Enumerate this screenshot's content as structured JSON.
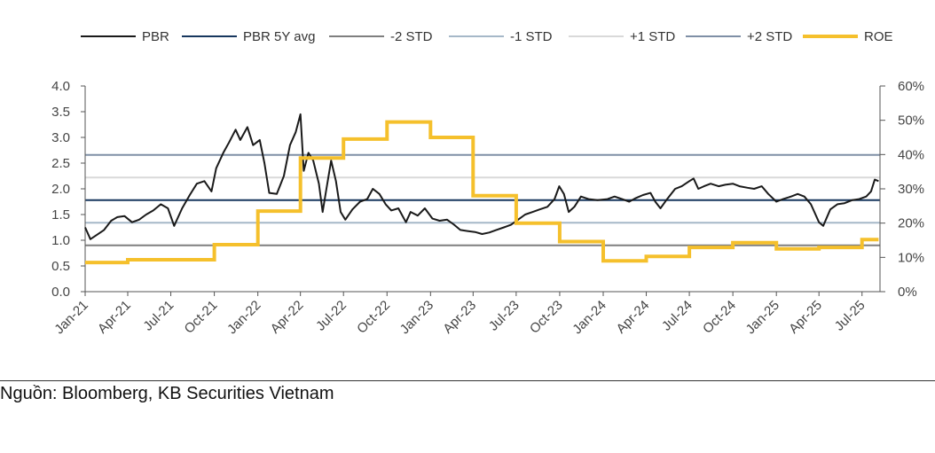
{
  "source": "Nguồn: Bloomberg, KB Securities Vietnam",
  "chart_data": {
    "type": "line",
    "title": "",
    "xlabel": "",
    "ylabel": "",
    "y_left_range": [
      0,
      4.0
    ],
    "y_left_ticks": [
      "0.0",
      "0.5",
      "1.0",
      "1.5",
      "2.0",
      "2.5",
      "3.0",
      "3.5",
      "4.0"
    ],
    "y_right_range": [
      0,
      60
    ],
    "y_right_ticks": [
      "0%",
      "10%",
      "20%",
      "30%",
      "40%",
      "50%",
      "60%"
    ],
    "x_ticks": [
      "Jan-21",
      "Apr-21",
      "Jul-21",
      "Oct-21",
      "Jan-22",
      "Apr-22",
      "Jul-22",
      "Oct-22",
      "Jan-23",
      "Apr-23",
      "Jul-23",
      "Oct-23",
      "Jan-24",
      "Apr-24",
      "Jul-24",
      "Oct-24",
      "Jan-25",
      "Apr-25",
      "Jul-25"
    ],
    "grid": false,
    "legend_position": "top",
    "series": [
      {
        "name": "PBR",
        "axis": "left",
        "color": "#1a1a1a",
        "style": "line",
        "points": [
          [
            "2021-01-01",
            1.25
          ],
          [
            "2021-01-12",
            1.02
          ],
          [
            "2021-01-25",
            1.1
          ],
          [
            "2021-02-10",
            1.2
          ],
          [
            "2021-02-25",
            1.38
          ],
          [
            "2021-03-10",
            1.45
          ],
          [
            "2021-03-25",
            1.47
          ],
          [
            "2021-04-10",
            1.35
          ],
          [
            "2021-04-25",
            1.4
          ],
          [
            "2021-05-10",
            1.5
          ],
          [
            "2021-05-25",
            1.58
          ],
          [
            "2021-06-10",
            1.7
          ],
          [
            "2021-06-25",
            1.62
          ],
          [
            "2021-07-08",
            1.28
          ],
          [
            "2021-07-25",
            1.62
          ],
          [
            "2021-08-10",
            1.88
          ],
          [
            "2021-08-25",
            2.1
          ],
          [
            "2021-09-10",
            2.15
          ],
          [
            "2021-09-25",
            1.95
          ],
          [
            "2021-10-05",
            2.4
          ],
          [
            "2021-10-20",
            2.7
          ],
          [
            "2021-11-01",
            2.9
          ],
          [
            "2021-11-15",
            3.15
          ],
          [
            "2021-11-25",
            2.95
          ],
          [
            "2021-12-10",
            3.2
          ],
          [
            "2021-12-22",
            2.85
          ],
          [
            "2022-01-05",
            2.95
          ],
          [
            "2022-01-15",
            2.5
          ],
          [
            "2022-01-25",
            1.92
          ],
          [
            "2022-02-10",
            1.9
          ],
          [
            "2022-02-25",
            2.25
          ],
          [
            "2022-03-10",
            2.85
          ],
          [
            "2022-03-22",
            3.1
          ],
          [
            "2022-04-01",
            3.45
          ],
          [
            "2022-04-08",
            2.35
          ],
          [
            "2022-04-18",
            2.7
          ],
          [
            "2022-04-28",
            2.55
          ],
          [
            "2022-05-10",
            2.1
          ],
          [
            "2022-05-18",
            1.55
          ],
          [
            "2022-05-25",
            1.95
          ],
          [
            "2022-06-05",
            2.55
          ],
          [
            "2022-06-15",
            2.15
          ],
          [
            "2022-06-25",
            1.55
          ],
          [
            "2022-07-05",
            1.4
          ],
          [
            "2022-07-20",
            1.6
          ],
          [
            "2022-08-05",
            1.75
          ],
          [
            "2022-08-20",
            1.8
          ],
          [
            "2022-09-01",
            2.0
          ],
          [
            "2022-09-15",
            1.9
          ],
          [
            "2022-09-28",
            1.7
          ],
          [
            "2022-10-10",
            1.58
          ],
          [
            "2022-10-25",
            1.62
          ],
          [
            "2022-11-10",
            1.35
          ],
          [
            "2022-11-20",
            1.55
          ],
          [
            "2022-12-05",
            1.48
          ],
          [
            "2022-12-20",
            1.62
          ],
          [
            "2023-01-05",
            1.42
          ],
          [
            "2023-01-20",
            1.38
          ],
          [
            "2023-02-05",
            1.4
          ],
          [
            "2023-02-20",
            1.3
          ],
          [
            "2023-03-05",
            1.2
          ],
          [
            "2023-03-20",
            1.18
          ],
          [
            "2023-04-05",
            1.16
          ],
          [
            "2023-04-20",
            1.12
          ],
          [
            "2023-05-05",
            1.15
          ],
          [
            "2023-05-20",
            1.2
          ],
          [
            "2023-06-05",
            1.25
          ],
          [
            "2023-06-20",
            1.3
          ],
          [
            "2023-07-05",
            1.4
          ],
          [
            "2023-07-20",
            1.5
          ],
          [
            "2023-08-05",
            1.55
          ],
          [
            "2023-08-20",
            1.6
          ],
          [
            "2023-09-05",
            1.65
          ],
          [
            "2023-09-20",
            1.8
          ],
          [
            "2023-09-30",
            2.05
          ],
          [
            "2023-10-10",
            1.9
          ],
          [
            "2023-10-20",
            1.55
          ],
          [
            "2023-11-01",
            1.65
          ],
          [
            "2023-11-15",
            1.85
          ],
          [
            "2023-12-01",
            1.8
          ],
          [
            "2023-12-20",
            1.78
          ],
          [
            "2024-01-10",
            1.8
          ],
          [
            "2024-01-25",
            1.85
          ],
          [
            "2024-02-10",
            1.8
          ],
          [
            "2024-02-25",
            1.75
          ],
          [
            "2024-03-10",
            1.82
          ],
          [
            "2024-03-25",
            1.88
          ],
          [
            "2024-04-10",
            1.92
          ],
          [
            "2024-04-20",
            1.75
          ],
          [
            "2024-05-01",
            1.62
          ],
          [
            "2024-05-15",
            1.8
          ],
          [
            "2024-06-01",
            2.0
          ],
          [
            "2024-06-15",
            2.05
          ],
          [
            "2024-07-01",
            2.15
          ],
          [
            "2024-07-10",
            2.2
          ],
          [
            "2024-07-20",
            2.0
          ],
          [
            "2024-08-01",
            2.05
          ],
          [
            "2024-08-15",
            2.1
          ],
          [
            "2024-09-01",
            2.05
          ],
          [
            "2024-09-15",
            2.08
          ],
          [
            "2024-10-01",
            2.1
          ],
          [
            "2024-10-15",
            2.05
          ],
          [
            "2024-11-01",
            2.02
          ],
          [
            "2024-11-15",
            2.0
          ],
          [
            "2024-12-01",
            2.05
          ],
          [
            "2024-12-15",
            1.9
          ],
          [
            "2025-01-01",
            1.75
          ],
          [
            "2025-01-15",
            1.8
          ],
          [
            "2025-02-01",
            1.85
          ],
          [
            "2025-02-15",
            1.9
          ],
          [
            "2025-03-01",
            1.85
          ],
          [
            "2025-03-15",
            1.7
          ],
          [
            "2025-04-01",
            1.35
          ],
          [
            "2025-04-10",
            1.28
          ],
          [
            "2025-04-25",
            1.6
          ],
          [
            "2025-05-10",
            1.7
          ],
          [
            "2025-05-25",
            1.72
          ],
          [
            "2025-06-10",
            1.78
          ],
          [
            "2025-06-25",
            1.8
          ],
          [
            "2025-07-10",
            1.85
          ],
          [
            "2025-07-20",
            1.95
          ],
          [
            "2025-07-28",
            2.18
          ],
          [
            "2025-08-05",
            2.15
          ]
        ]
      },
      {
        "name": "PBR 5Y avg",
        "axis": "left",
        "color": "#17375e",
        "style": "hline",
        "value": 1.78
      },
      {
        "name": "-2 STD",
        "axis": "left",
        "color": "#7f7f7f",
        "style": "hline",
        "value": 0.9
      },
      {
        "name": "-1 STD",
        "axis": "left",
        "color": "#a6b8c8",
        "style": "hline",
        "value": 1.34
      },
      {
        "name": "+1 STD",
        "axis": "left",
        "color": "#d9d9d9",
        "style": "hline",
        "value": 2.22
      },
      {
        "name": "+2 STD",
        "axis": "left",
        "color": "#7f8fa6",
        "style": "hline",
        "value": 2.66
      },
      {
        "name": "ROE",
        "axis": "right",
        "color": "#f5c02c",
        "style": "step",
        "points": [
          [
            "2021-01-01",
            8.5
          ],
          [
            "2021-04-01",
            9.3
          ],
          [
            "2021-10-01",
            13.7
          ],
          [
            "2022-01-01",
            23.5
          ],
          [
            "2022-04-01",
            39.0
          ],
          [
            "2022-07-01",
            44.5
          ],
          [
            "2022-10-01",
            49.5
          ],
          [
            "2023-01-01",
            45.0
          ],
          [
            "2023-04-01",
            28.0
          ],
          [
            "2023-07-01",
            20.0
          ],
          [
            "2023-10-01",
            14.6
          ],
          [
            "2024-01-01",
            9.0
          ],
          [
            "2024-04-01",
            10.3
          ],
          [
            "2024-07-01",
            12.9
          ],
          [
            "2024-10-01",
            14.3
          ],
          [
            "2025-01-01",
            12.5
          ],
          [
            "2025-04-01",
            12.9
          ],
          [
            "2025-07-01",
            15.2
          ],
          [
            "2025-08-05",
            15.2
          ]
        ]
      }
    ]
  }
}
